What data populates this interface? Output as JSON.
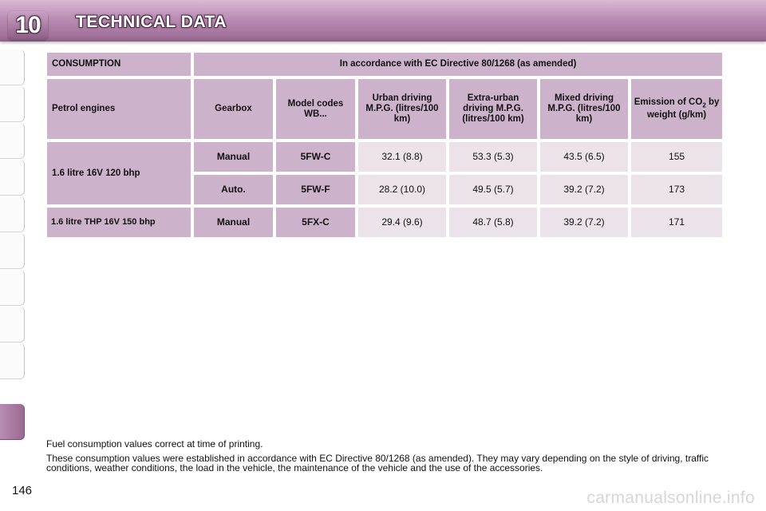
{
  "header": {
    "chapter_number": "10",
    "title": "TECHNICAL DATA",
    "colors": {
      "band": "#b98cb3",
      "cell_header": "#cdb2cc",
      "cell_value": "#ebe2ea"
    }
  },
  "table": {
    "section_label": "CONSUMPTION",
    "directive": "In accordance with EC Directive 80/1268 (as amended)",
    "columns": {
      "engine": "Petrol engines",
      "gearbox": "Gearbox",
      "model_codes": "Model codes WB...",
      "urban": "Urban driving M.P.G. (litres/100 km)",
      "extra_urban": "Extra-urban driving M.P.G. (litres/100 km)",
      "mixed": "Mixed driving M.P.G. (litres/100 km)",
      "emission_prefix": "Emission of CO",
      "emission_sub": "2",
      "emission_suffix": " by weight (g/km)"
    },
    "rows": [
      {
        "engine": "1.6 litre 16V 120 bhp",
        "gearbox": "Manual",
        "code": "5FW-C",
        "urban": "32.1 (8.8)",
        "extra_urban": "53.3 (5.3)",
        "mixed": "43.5 (6.5)",
        "co2": "155"
      },
      {
        "engine": "",
        "gearbox": "Auto.",
        "code": "5FW-F",
        "urban": "28.2 (10.0)",
        "extra_urban": "49.5 (5.7)",
        "mixed": "39.2 (7.2)",
        "co2": "173"
      },
      {
        "engine": "1.6 litre THP 16V 150 bhp",
        "gearbox": "Manual",
        "code": "5FX-C",
        "urban": "29.4 (9.6)",
        "extra_urban": "48.7 (5.8)",
        "mixed": "39.2 (7.2)",
        "co2": "171"
      }
    ]
  },
  "notes": {
    "line1": "Fuel consumption values correct at time of printing.",
    "line2": "These consumption values were established in accordance with EC Directive 80/1268 (as amended). They may vary depending on the style of driving, traffic conditions, weather conditions, the load in the vehicle, the maintenance of the vehicle and the use of the accessories."
  },
  "page_number": "146",
  "watermark": "carmanualsonline.info"
}
